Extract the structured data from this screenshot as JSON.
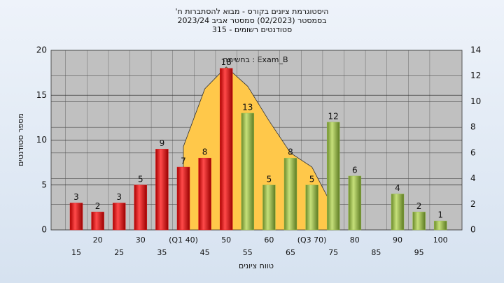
{
  "chart_data": {
    "type": "bar",
    "title": [
      "'היסטוגרמת ציונים בקורס - מבוא להסתברות ח",
      "בסמסטר  (02/2023)  סמסטר אביב 2023/24",
      "סטודנטים רשומים - 315"
    ],
    "annotation": "בחשימה : Exam_B",
    "x_label": "טווח ציונים",
    "y_label": "מספר סטודנטים",
    "categories": [
      "15",
      "20",
      "25",
      "30",
      "35",
      "(Q1 40)",
      "45",
      "50",
      "55",
      "60",
      "65",
      "(Q3 70)",
      "75",
      "80",
      "85",
      "90",
      "95",
      "100"
    ],
    "series": [
      {
        "color": "#e02424",
        "values": [
          3,
          2,
          3,
          5,
          9,
          7,
          8,
          18,
          null,
          null,
          null,
          null,
          null,
          null,
          null,
          null,
          null,
          null
        ]
      },
      {
        "color": "#9cc24e",
        "values": [
          null,
          null,
          null,
          null,
          null,
          null,
          null,
          null,
          13,
          5,
          8,
          5,
          12,
          6,
          null,
          4,
          2,
          1
        ]
      },
      {
        "type": "area",
        "axis": "y2",
        "color": "#ffc84a",
        "values": [
          null,
          null,
          null,
          null,
          null,
          6.5,
          11,
          12.7,
          11.2,
          8.5,
          6,
          4.9,
          1.7,
          null,
          null,
          null,
          null,
          null
        ]
      }
    ],
    "ylim": [
      0,
      20
    ],
    "yticks": [
      0,
      5,
      10,
      15,
      20
    ],
    "y2lim": [
      0,
      14
    ],
    "y2ticks": [
      0,
      2,
      4,
      6,
      8,
      10,
      12,
      14
    ],
    "grid": true
  }
}
